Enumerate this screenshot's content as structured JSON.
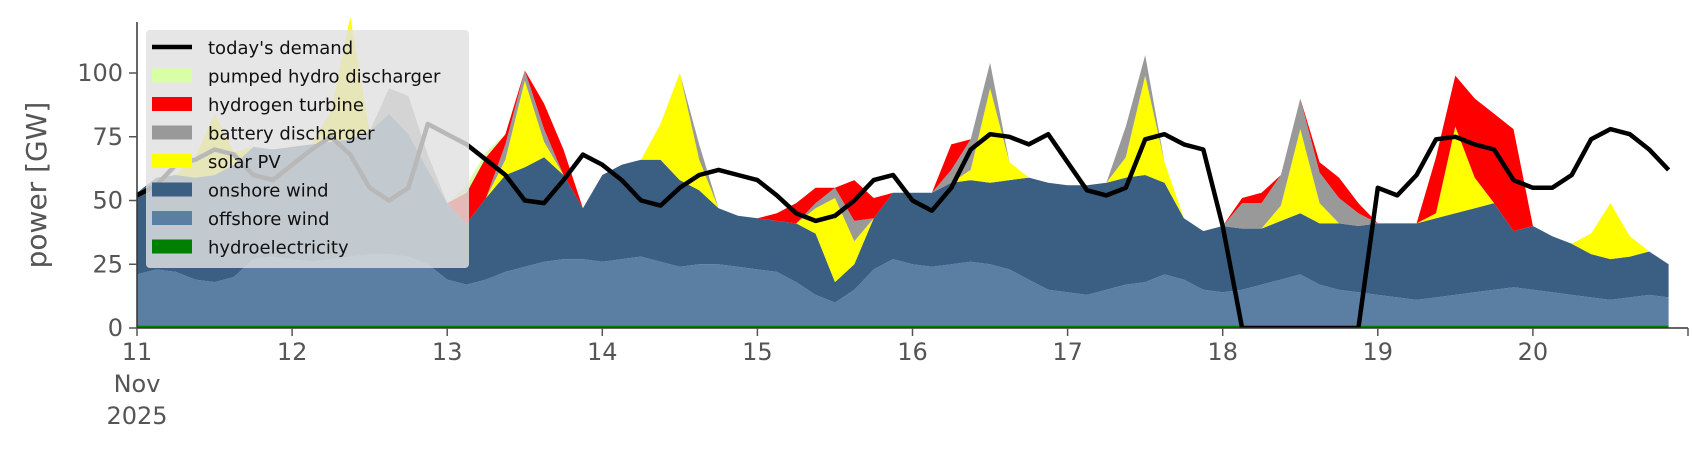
{
  "chart_data": {
    "type": "area",
    "title": "",
    "xlabel": "",
    "ylabel": "power [GW]",
    "x_start": "2025-11-11T00:00",
    "x_end": "2025-11-21T00:00",
    "x_step_hours": 3,
    "ylim": [
      0,
      120
    ],
    "y_ticks": [
      0,
      25,
      50,
      75,
      100
    ],
    "x_ticks": [
      {
        "value": "2025-11-11",
        "label": "11",
        "sub1": "Nov",
        "sub2": "2025"
      },
      {
        "value": "2025-11-12",
        "label": "12"
      },
      {
        "value": "2025-11-13",
        "label": "13"
      },
      {
        "value": "2025-11-14",
        "label": "14"
      },
      {
        "value": "2025-11-15",
        "label": "15"
      },
      {
        "value": "2025-11-16",
        "label": "16"
      },
      {
        "value": "2025-11-17",
        "label": "17"
      },
      {
        "value": "2025-11-18",
        "label": "18"
      },
      {
        "value": "2025-11-19",
        "label": "19"
      },
      {
        "value": "2025-11-20",
        "label": "20"
      }
    ],
    "grid": false,
    "legend_position": "upper-left",
    "stack_order": [
      "hydroelectricity",
      "offshore wind",
      "onshore wind",
      "solar PV",
      "battery discharger",
      "hydrogen turbine",
      "pumped hydro discharger"
    ],
    "series": [
      {
        "name": "hydroelectricity",
        "color": "#008000",
        "values": [
          1,
          1,
          1,
          1,
          1,
          1,
          1,
          1,
          1,
          1,
          1,
          1,
          1,
          1,
          1,
          1,
          1,
          1,
          1,
          1,
          1,
          1,
          1,
          1,
          1,
          1,
          1,
          1,
          1,
          1,
          1,
          1,
          1,
          1,
          1,
          1,
          1,
          1,
          1,
          1,
          1,
          1,
          1,
          1,
          1,
          1,
          1,
          1,
          1,
          1,
          1,
          1,
          1,
          1,
          1,
          1,
          1,
          1,
          1,
          1,
          1,
          1,
          1,
          1,
          1,
          1,
          1,
          1,
          1,
          1,
          1,
          1,
          1,
          1,
          1,
          1,
          1,
          1,
          1,
          1
        ]
      },
      {
        "name": "offshore wind",
        "color": "#5a7fa3",
        "values": [
          20,
          22,
          21,
          18,
          17,
          19,
          26,
          27,
          26,
          25,
          26,
          27,
          28,
          28,
          27,
          24,
          18,
          16,
          18,
          21,
          23,
          25,
          26,
          26,
          25,
          26,
          27,
          25,
          23,
          24,
          24,
          23,
          22,
          21,
          17,
          12,
          9,
          14,
          22,
          26,
          24,
          23,
          24,
          25,
          24,
          22,
          18,
          14,
          13,
          12,
          14,
          16,
          17,
          20,
          18,
          14,
          13,
          14,
          16,
          18,
          20,
          16,
          14,
          13,
          12,
          11,
          10,
          11,
          12,
          13,
          14,
          15,
          14,
          13,
          12,
          11,
          10,
          11,
          12,
          11
        ]
      },
      {
        "name": "onshore wind",
        "color": "#3a5f82",
        "values": [
          32,
          36,
          38,
          40,
          42,
          44,
          44,
          42,
          44,
          46,
          46,
          46,
          48,
          55,
          48,
          37,
          30,
          24,
          32,
          38,
          39,
          41,
          33,
          20,
          34,
          37,
          38,
          40,
          34,
          29,
          22,
          20,
          20,
          20,
          23,
          24,
          8,
          10,
          20,
          26,
          28,
          29,
          32,
          32,
          32,
          35,
          40,
          42,
          42,
          43,
          42,
          42,
          42,
          36,
          24,
          23,
          26,
          24,
          22,
          23,
          24,
          24,
          26,
          26,
          28,
          29,
          30,
          31,
          32,
          33,
          34,
          22,
          25,
          22,
          20,
          17,
          16,
          16,
          17,
          13
        ]
      },
      {
        "name": "solar PV",
        "color": "#ffff00",
        "values": [
          0,
          0,
          0,
          8,
          24,
          5,
          0,
          0,
          0,
          0,
          12,
          48,
          0,
          0,
          0,
          0,
          0,
          0,
          0,
          6,
          34,
          6,
          0,
          0,
          0,
          0,
          0,
          14,
          42,
          12,
          0,
          0,
          0,
          0,
          0,
          10,
          33,
          9,
          0,
          0,
          0,
          0,
          0,
          4,
          37,
          7,
          0,
          0,
          0,
          0,
          0,
          8,
          39,
          8,
          0,
          0,
          0,
          0,
          0,
          6,
          33,
          8,
          0,
          0,
          0,
          0,
          0,
          2,
          34,
          12,
          0,
          0,
          0,
          0,
          0,
          8,
          22,
          8,
          0,
          0
        ]
      },
      {
        "name": "battery discharger",
        "color": "#999999",
        "values": [
          0,
          0,
          0,
          0,
          0,
          0,
          0,
          0,
          0,
          0,
          0,
          0,
          0,
          10,
          15,
          6,
          0,
          0,
          0,
          6,
          4,
          5,
          0,
          0,
          0,
          0,
          0,
          0,
          0,
          6,
          0,
          0,
          0,
          0,
          0,
          2,
          4,
          8,
          0,
          0,
          0,
          0,
          5,
          12,
          10,
          0,
          0,
          0,
          0,
          0,
          0,
          12,
          8,
          0,
          0,
          0,
          0,
          10,
          10,
          12,
          12,
          12,
          10,
          5,
          0,
          0,
          0,
          0,
          0,
          0,
          0,
          0,
          0,
          0,
          0,
          0,
          0,
          0,
          0,
          0
        ]
      },
      {
        "name": "hydrogen turbine",
        "color": "#ff0000",
        "values": [
          0,
          0,
          0,
          0,
          0,
          0,
          0,
          0,
          0,
          0,
          0,
          0,
          0,
          0,
          0,
          0,
          0,
          12,
          16,
          4,
          0,
          10,
          10,
          0,
          0,
          0,
          0,
          0,
          0,
          0,
          0,
          0,
          0,
          3,
          8,
          6,
          0,
          16,
          8,
          0,
          0,
          0,
          10,
          0,
          0,
          0,
          0,
          0,
          0,
          0,
          0,
          0,
          0,
          0,
          0,
          0,
          0,
          2,
          4,
          0,
          0,
          4,
          8,
          4,
          0,
          0,
          0,
          22,
          20,
          31,
          35,
          40,
          0,
          0,
          0,
          0,
          0,
          0,
          0,
          0
        ]
      },
      {
        "name": "pumped hydro discharger",
        "color": "#d9ffa6",
        "values": [
          0,
          0,
          0,
          0,
          0,
          0,
          0,
          0,
          0,
          0,
          0,
          0,
          0,
          0,
          0,
          0,
          0,
          3,
          2,
          0,
          0,
          0,
          0,
          0,
          0,
          0,
          0,
          0,
          0,
          0,
          0,
          0,
          0,
          0,
          0,
          0,
          0,
          0,
          0,
          0,
          0,
          0,
          0,
          0,
          0,
          0,
          0,
          0,
          0,
          0,
          0,
          0,
          0,
          0,
          0,
          0,
          0,
          0,
          0,
          0,
          0,
          0,
          0,
          0,
          0,
          0,
          0,
          0,
          0,
          0,
          0,
          0,
          0,
          0,
          0,
          0,
          0,
          0,
          0,
          0
        ]
      }
    ],
    "line": {
      "name": "today's demand",
      "color": "#000000",
      "values": [
        52,
        56,
        64,
        66,
        70,
        68,
        60,
        58,
        64,
        70,
        75,
        68,
        55,
        50,
        55,
        80,
        76,
        72,
        66,
        60,
        50,
        49,
        58,
        68,
        64,
        58,
        50,
        48,
        55,
        60,
        62,
        60,
        58,
        52,
        45,
        42,
        44,
        50,
        58,
        60,
        50,
        46,
        55,
        70,
        76,
        75,
        72,
        76,
        65,
        54,
        52,
        55,
        74,
        76,
        72,
        70,
        40,
        0,
        0,
        0,
        0,
        0,
        0,
        0,
        55,
        52,
        60,
        74,
        75,
        72,
        70,
        58,
        55,
        55,
        60,
        74,
        78,
        76,
        70,
        62
      ]
    }
  },
  "legend": {
    "items": [
      {
        "label": "today's demand",
        "kind": "line",
        "color": "#000000"
      },
      {
        "label": "pumped hydro discharger",
        "kind": "patch",
        "color": "#d9ffa6"
      },
      {
        "label": "hydrogen turbine",
        "kind": "patch",
        "color": "#ff0000"
      },
      {
        "label": "battery discharger",
        "kind": "patch",
        "color": "#999999"
      },
      {
        "label": "solar PV",
        "kind": "patch",
        "color": "#ffff00"
      },
      {
        "label": "onshore wind",
        "kind": "patch",
        "color": "#3a5f82"
      },
      {
        "label": "offshore wind",
        "kind": "patch",
        "color": "#5a7fa3"
      },
      {
        "label": "hydroelectricity",
        "kind": "patch",
        "color": "#008000"
      }
    ]
  }
}
